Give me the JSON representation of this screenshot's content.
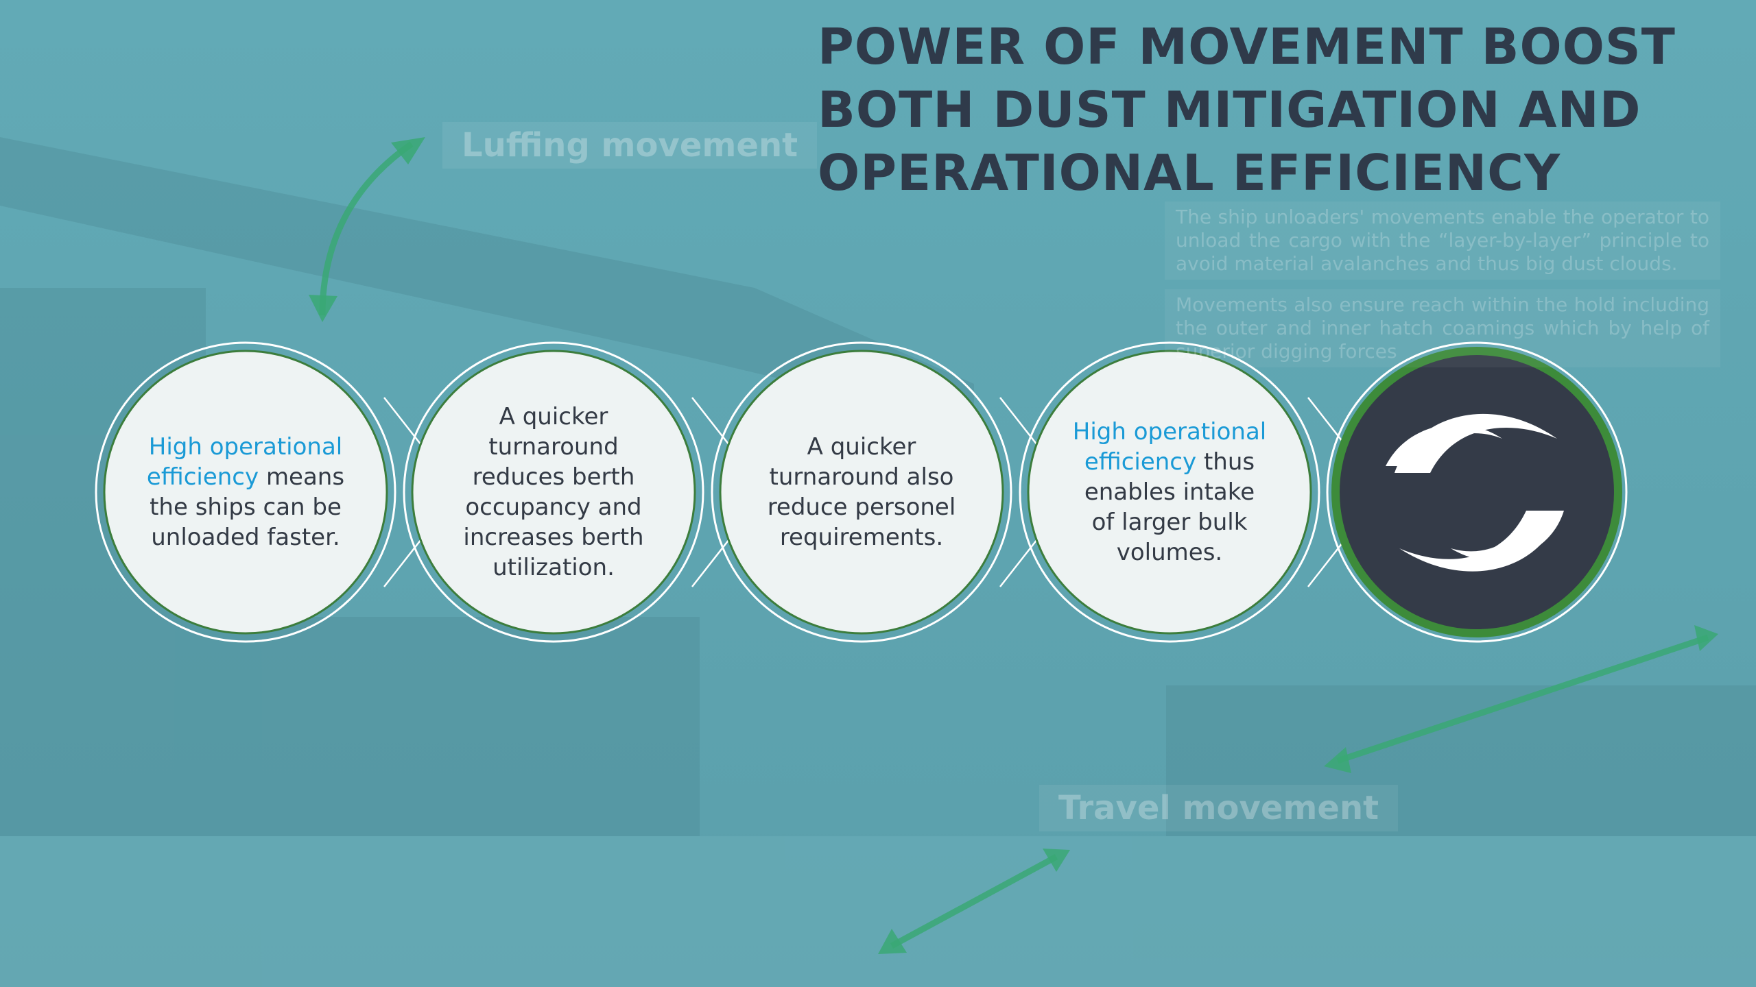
{
  "title": [
    "POWER OF MOVEMENT BOOST",
    "BOTH DUST MITIGATION AND",
    "OPERATIONAL EFFICIENCY"
  ],
  "background_labels": [
    "Luffing movement",
    "Travel movement"
  ],
  "side_text": [
    "The ship unloaders' movements enable the operator to unload the cargo with the “layer-by-layer” principle to avoid material avalanches and thus big dust clouds.",
    "Movements also ensure reach within the hold including the outer and inner hatch coamings which by help of superior digging forces"
  ],
  "steps": [
    {
      "highlight": "High operational efficiency",
      "text": "means the ships can be unloaded faster."
    },
    {
      "text": "A quicker turnaround reduces berth occupancy and increases berth utilization."
    },
    {
      "text": "A quicker turnaround also reduce personel requirements."
    },
    {
      "highlight": "High operational efficiency",
      "text": "thus enables intake of larger bulk volumes."
    }
  ]
}
